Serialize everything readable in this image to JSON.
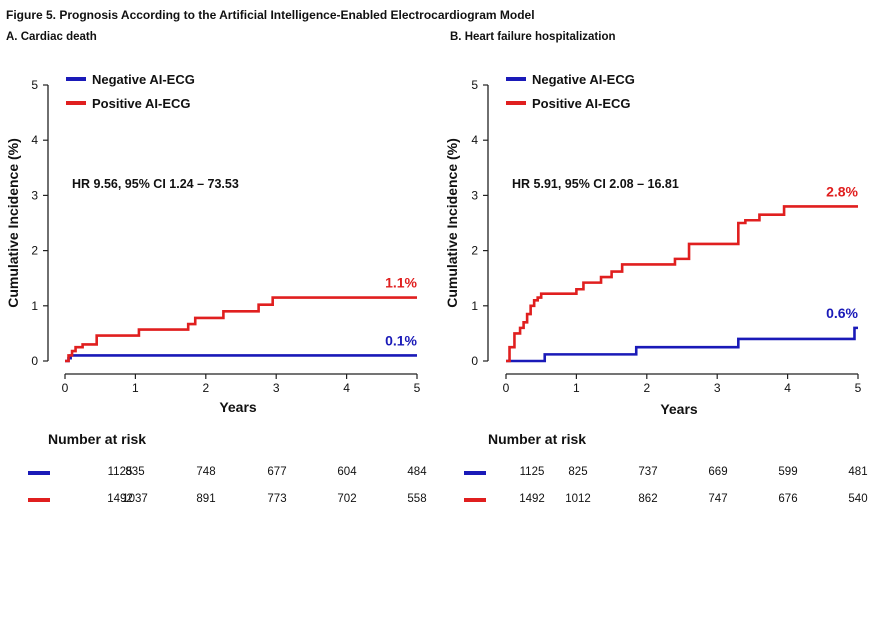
{
  "figure_title": "Figure 5. Prognosis According to the Artificial Intelligence-Enabled Electrocardiogram Model",
  "colors": {
    "negative": "#1a1ab8",
    "positive": "#e01f1f"
  },
  "chart_data": [
    {
      "type": "line",
      "panel_label": "A. Cardiac death",
      "xlabel": "Years",
      "ylabel": "Cumulative Incidence (%)",
      "xlim": [
        0,
        5
      ],
      "ylim": [
        0,
        5
      ],
      "x_ticks": [
        "0",
        "1",
        "2",
        "3",
        "4",
        "5"
      ],
      "y_ticks": [
        "0",
        "1",
        "2",
        "3",
        "4",
        "5"
      ],
      "legend": [
        "Negative AI-ECG",
        "Positive AI-ECG"
      ],
      "annotation": "HR 9.56, 95% CI 1.24 – 73.53",
      "series": [
        {
          "name": "Negative AI-ECG",
          "color": "#1a1ab8",
          "end_label": "0.1%",
          "x": [
            0,
            0.05,
            0.08,
            5
          ],
          "y": [
            0,
            0.05,
            0.1,
            0.1
          ]
        },
        {
          "name": "Positive AI-ECG",
          "color": "#e01f1f",
          "end_label": "1.1%",
          "x": [
            0,
            0.05,
            0.1,
            0.15,
            0.25,
            0.45,
            1.05,
            1.75,
            1.85,
            2.25,
            2.75,
            2.95,
            5
          ],
          "y": [
            0,
            0.1,
            0.18,
            0.25,
            0.3,
            0.46,
            0.57,
            0.67,
            0.78,
            0.9,
            1.02,
            1.15,
            1.15
          ]
        }
      ],
      "risk_table": {
        "title": "Number at risk",
        "rows": [
          {
            "color": "#1a1ab8",
            "values": [
              "1125",
              "835",
              "748",
              "677",
              "604",
              "484"
            ]
          },
          {
            "color": "#e01f1f",
            "values": [
              "1492",
              "1037",
              "891",
              "773",
              "702",
              "558"
            ]
          }
        ]
      }
    },
    {
      "type": "line",
      "panel_label": "B. Heart failure hospitalization",
      "xlabel": "Years",
      "ylabel": "Cumulative Incidence (%)",
      "xlim": [
        0,
        5
      ],
      "ylim": [
        0,
        5
      ],
      "x_ticks": [
        "0",
        "1",
        "2",
        "3",
        "4",
        "5"
      ],
      "y_ticks": [
        "0",
        "1",
        "2",
        "3",
        "4",
        "5"
      ],
      "legend": [
        "Negative AI-ECG",
        "Positive AI-ECG"
      ],
      "annotation": "HR 5.91, 95% CI 2.08 – 16.81",
      "series": [
        {
          "name": "Negative AI-ECG",
          "color": "#1a1ab8",
          "end_label": "0.6%",
          "x": [
            0,
            0.55,
            1.85,
            3.3,
            4.95,
            5
          ],
          "y": [
            0,
            0.12,
            0.25,
            0.4,
            0.6,
            0.6
          ]
        },
        {
          "name": "Positive AI-ECG",
          "color": "#e01f1f",
          "end_label": "2.8%",
          "x": [
            0,
            0.05,
            0.12,
            0.2,
            0.25,
            0.3,
            0.35,
            0.4,
            0.45,
            0.5,
            1.0,
            1.1,
            1.35,
            1.5,
            1.65,
            2.4,
            2.6,
            3.3,
            3.4,
            3.6,
            3.95,
            5
          ],
          "y": [
            0,
            0.25,
            0.5,
            0.6,
            0.7,
            0.85,
            1.0,
            1.1,
            1.15,
            1.22,
            1.3,
            1.42,
            1.52,
            1.62,
            1.75,
            1.85,
            2.12,
            2.5,
            2.55,
            2.65,
            2.8,
            2.8
          ]
        }
      ],
      "risk_table": {
        "title": "Number at risk",
        "rows": [
          {
            "color": "#1a1ab8",
            "values": [
              "1125",
              "825",
              "737",
              "669",
              "599",
              "481"
            ]
          },
          {
            "color": "#e01f1f",
            "values": [
              "1492",
              "1012",
              "862",
              "747",
              "676",
              "540"
            ]
          }
        ]
      }
    }
  ]
}
